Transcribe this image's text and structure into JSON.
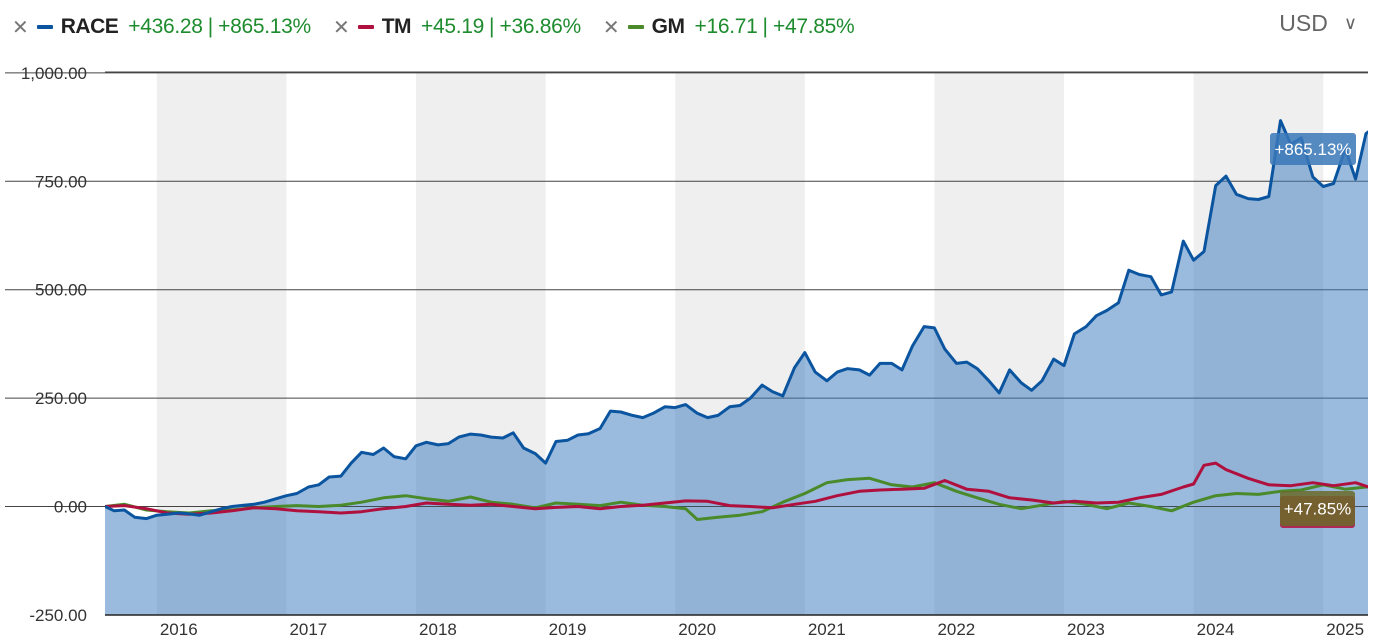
{
  "legend": [
    {
      "ticker": "RACE",
      "abs": "+436.28",
      "pct": "+865.13%",
      "color": "#0b55a0"
    },
    {
      "ticker": "TM",
      "abs": "+45.19",
      "pct": "+36.86%",
      "color": "#b0103e"
    },
    {
      "ticker": "GM",
      "abs": "+16.71",
      "pct": "+47.85%",
      "color": "#4a8a2a"
    }
  ],
  "currency": "USD",
  "chart_data": {
    "type": "line",
    "title": "",
    "xlabel": "",
    "ylabel": "",
    "ylim": [
      -250,
      1000
    ],
    "xlim": [
      2015.6,
      2025.35
    ],
    "yticks": [
      1000,
      750,
      500,
      250,
      0,
      -250
    ],
    "ytick_labels": [
      "1,000.00",
      "750.00",
      "500.00",
      "250.00",
      "0.00",
      "-250.00"
    ],
    "xtick_labels": [
      "2016",
      "2017",
      "2018",
      "2019",
      "2020",
      "2021",
      "2022",
      "2023",
      "2024",
      "2025"
    ],
    "shaded_years": [
      2016,
      2018,
      2020,
      2022,
      2024
    ],
    "grid": true,
    "legend_position": "top-left",
    "end_labels": [
      {
        "series": "RACE",
        "text": "+865.13%"
      },
      {
        "series": "GM",
        "text": "+47.85%"
      }
    ],
    "series": [
      {
        "name": "RACE",
        "color": "#0b55a0",
        "area": true,
        "points": [
          [
            2015.6,
            0
          ],
          [
            2015.67,
            -10
          ],
          [
            2015.75,
            -8
          ],
          [
            2015.83,
            -25
          ],
          [
            2015.92,
            -28
          ],
          [
            2016.0,
            -20
          ],
          [
            2016.08,
            -18
          ],
          [
            2016.17,
            -15
          ],
          [
            2016.25,
            -17
          ],
          [
            2016.33,
            -20
          ],
          [
            2016.42,
            -12
          ],
          [
            2016.5,
            -5
          ],
          [
            2016.58,
            0
          ],
          [
            2016.67,
            3
          ],
          [
            2016.75,
            5
          ],
          [
            2016.83,
            10
          ],
          [
            2016.92,
            18
          ],
          [
            2017.0,
            25
          ],
          [
            2017.08,
            30
          ],
          [
            2017.17,
            45
          ],
          [
            2017.25,
            50
          ],
          [
            2017.33,
            68
          ],
          [
            2017.42,
            70
          ],
          [
            2017.5,
            100
          ],
          [
            2017.58,
            125
          ],
          [
            2017.67,
            120
          ],
          [
            2017.75,
            135
          ],
          [
            2017.83,
            115
          ],
          [
            2017.92,
            110
          ],
          [
            2018.0,
            140
          ],
          [
            2018.08,
            148
          ],
          [
            2018.17,
            142
          ],
          [
            2018.25,
            145
          ],
          [
            2018.33,
            160
          ],
          [
            2018.42,
            167
          ],
          [
            2018.5,
            165
          ],
          [
            2018.58,
            160
          ],
          [
            2018.67,
            158
          ],
          [
            2018.75,
            170
          ],
          [
            2018.83,
            135
          ],
          [
            2018.92,
            122
          ],
          [
            2019.0,
            100
          ],
          [
            2019.08,
            150
          ],
          [
            2019.17,
            153
          ],
          [
            2019.25,
            165
          ],
          [
            2019.33,
            168
          ],
          [
            2019.42,
            180
          ],
          [
            2019.5,
            220
          ],
          [
            2019.58,
            218
          ],
          [
            2019.67,
            210
          ],
          [
            2019.75,
            205
          ],
          [
            2019.83,
            215
          ],
          [
            2019.92,
            230
          ],
          [
            2020.0,
            228
          ],
          [
            2020.08,
            235
          ],
          [
            2020.17,
            215
          ],
          [
            2020.25,
            205
          ],
          [
            2020.33,
            210
          ],
          [
            2020.42,
            230
          ],
          [
            2020.5,
            233
          ],
          [
            2020.58,
            250
          ],
          [
            2020.67,
            280
          ],
          [
            2020.75,
            265
          ],
          [
            2020.83,
            255
          ],
          [
            2020.92,
            320
          ],
          [
            2021.0,
            355
          ],
          [
            2021.08,
            310
          ],
          [
            2021.17,
            290
          ],
          [
            2021.25,
            310
          ],
          [
            2021.33,
            318
          ],
          [
            2021.42,
            315
          ],
          [
            2021.5,
            303
          ],
          [
            2021.58,
            330
          ],
          [
            2021.67,
            330
          ],
          [
            2021.75,
            315
          ],
          [
            2021.83,
            370
          ],
          [
            2021.92,
            415
          ],
          [
            2022.0,
            412
          ],
          [
            2022.08,
            363
          ],
          [
            2022.17,
            330
          ],
          [
            2022.25,
            333
          ],
          [
            2022.33,
            318
          ],
          [
            2022.42,
            290
          ],
          [
            2022.5,
            262
          ],
          [
            2022.58,
            315
          ],
          [
            2022.67,
            285
          ],
          [
            2022.75,
            268
          ],
          [
            2022.83,
            290
          ],
          [
            2022.92,
            340
          ],
          [
            2023.0,
            325
          ],
          [
            2023.08,
            398
          ],
          [
            2023.17,
            415
          ],
          [
            2023.25,
            440
          ],
          [
            2023.33,
            452
          ],
          [
            2023.42,
            470
          ],
          [
            2023.5,
            545
          ],
          [
            2023.58,
            535
          ],
          [
            2023.67,
            530
          ],
          [
            2023.75,
            488
          ],
          [
            2023.83,
            495
          ],
          [
            2023.92,
            612
          ],
          [
            2024.0,
            568
          ],
          [
            2024.08,
            588
          ],
          [
            2024.17,
            740
          ],
          [
            2024.25,
            762
          ],
          [
            2024.33,
            720
          ],
          [
            2024.42,
            710
          ],
          [
            2024.5,
            708
          ],
          [
            2024.58,
            715
          ],
          [
            2024.67,
            890
          ],
          [
            2024.75,
            835
          ],
          [
            2024.83,
            850
          ],
          [
            2024.92,
            760
          ],
          [
            2025.0,
            738
          ],
          [
            2025.08,
            745
          ],
          [
            2025.17,
            825
          ],
          [
            2025.25,
            755
          ],
          [
            2025.33,
            860
          ],
          [
            2025.42,
            880
          ],
          [
            2025.5,
            875
          ]
        ]
      },
      {
        "name": "TM",
        "color": "#b0103e",
        "area": false,
        "points": [
          [
            2015.6,
            0
          ],
          [
            2015.75,
            2
          ],
          [
            2015.92,
            -5
          ],
          [
            2016.08,
            -15
          ],
          [
            2016.25,
            -18
          ],
          [
            2016.42,
            -15
          ],
          [
            2016.58,
            -10
          ],
          [
            2016.75,
            -3
          ],
          [
            2016.92,
            -5
          ],
          [
            2017.08,
            -10
          ],
          [
            2017.25,
            -12
          ],
          [
            2017.42,
            -15
          ],
          [
            2017.58,
            -12
          ],
          [
            2017.75,
            -5
          ],
          [
            2017.92,
            0
          ],
          [
            2018.08,
            8
          ],
          [
            2018.25,
            5
          ],
          [
            2018.42,
            3
          ],
          [
            2018.58,
            5
          ],
          [
            2018.75,
            0
          ],
          [
            2018.92,
            -5
          ],
          [
            2019.08,
            -2
          ],
          [
            2019.25,
            0
          ],
          [
            2019.42,
            -5
          ],
          [
            2019.58,
            0
          ],
          [
            2019.75,
            3
          ],
          [
            2019.92,
            8
          ],
          [
            2020.08,
            13
          ],
          [
            2020.25,
            12
          ],
          [
            2020.42,
            2
          ],
          [
            2020.58,
            0
          ],
          [
            2020.75,
            -3
          ],
          [
            2020.92,
            5
          ],
          [
            2021.08,
            12
          ],
          [
            2021.25,
            25
          ],
          [
            2021.42,
            35
          ],
          [
            2021.58,
            38
          ],
          [
            2021.75,
            40
          ],
          [
            2021.92,
            42
          ],
          [
            2022.08,
            60
          ],
          [
            2022.25,
            40
          ],
          [
            2022.42,
            35
          ],
          [
            2022.58,
            20
          ],
          [
            2022.75,
            15
          ],
          [
            2022.92,
            8
          ],
          [
            2023.08,
            12
          ],
          [
            2023.25,
            8
          ],
          [
            2023.42,
            10
          ],
          [
            2023.58,
            20
          ],
          [
            2023.75,
            28
          ],
          [
            2023.92,
            45
          ],
          [
            2024.0,
            52
          ],
          [
            2024.08,
            95
          ],
          [
            2024.17,
            100
          ],
          [
            2024.25,
            85
          ],
          [
            2024.42,
            65
          ],
          [
            2024.58,
            50
          ],
          [
            2024.75,
            48
          ],
          [
            2024.92,
            55
          ],
          [
            2025.08,
            48
          ],
          [
            2025.25,
            55
          ],
          [
            2025.42,
            38
          ]
        ]
      },
      {
        "name": "GM",
        "color": "#4a8a2a",
        "area": false,
        "points": [
          [
            2015.6,
            0
          ],
          [
            2015.75,
            5
          ],
          [
            2015.92,
            -8
          ],
          [
            2016.08,
            -12
          ],
          [
            2016.25,
            -15
          ],
          [
            2016.42,
            -10
          ],
          [
            2016.58,
            -8
          ],
          [
            2016.75,
            -3
          ],
          [
            2016.92,
            0
          ],
          [
            2017.08,
            2
          ],
          [
            2017.25,
            0
          ],
          [
            2017.42,
            3
          ],
          [
            2017.58,
            10
          ],
          [
            2017.75,
            20
          ],
          [
            2017.92,
            25
          ],
          [
            2018.08,
            18
          ],
          [
            2018.25,
            12
          ],
          [
            2018.42,
            22
          ],
          [
            2018.58,
            10
          ],
          [
            2018.75,
            5
          ],
          [
            2018.92,
            -3
          ],
          [
            2019.08,
            8
          ],
          [
            2019.25,
            5
          ],
          [
            2019.42,
            2
          ],
          [
            2019.58,
            10
          ],
          [
            2019.75,
            3
          ],
          [
            2019.92,
            0
          ],
          [
            2020.08,
            -5
          ],
          [
            2020.17,
            -30
          ],
          [
            2020.33,
            -25
          ],
          [
            2020.5,
            -20
          ],
          [
            2020.67,
            -12
          ],
          [
            2020.83,
            10
          ],
          [
            2021.0,
            30
          ],
          [
            2021.17,
            55
          ],
          [
            2021.33,
            62
          ],
          [
            2021.5,
            65
          ],
          [
            2021.67,
            50
          ],
          [
            2021.83,
            45
          ],
          [
            2022.0,
            55
          ],
          [
            2022.17,
            35
          ],
          [
            2022.33,
            20
          ],
          [
            2022.5,
            5
          ],
          [
            2022.67,
            -5
          ],
          [
            2022.83,
            3
          ],
          [
            2023.0,
            12
          ],
          [
            2023.17,
            5
          ],
          [
            2023.33,
            -5
          ],
          [
            2023.5,
            8
          ],
          [
            2023.67,
            0
          ],
          [
            2023.83,
            -10
          ],
          [
            2024.0,
            10
          ],
          [
            2024.17,
            25
          ],
          [
            2024.33,
            30
          ],
          [
            2024.5,
            28
          ],
          [
            2024.67,
            35
          ],
          [
            2024.83,
            38
          ],
          [
            2025.0,
            50
          ],
          [
            2025.17,
            40
          ],
          [
            2025.33,
            45
          ],
          [
            2025.5,
            48
          ]
        ]
      }
    ]
  }
}
